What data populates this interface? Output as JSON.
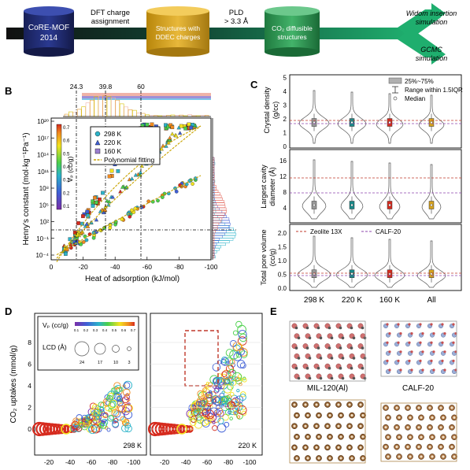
{
  "colors": {
    "workflow_arrow": "#1a7a55",
    "workflow_arrow_dark": "#111111",
    "cylinder_navy": "#1f2a6b",
    "cylinder_gold": "#d6a21e",
    "cylinder_green": "#2f9a52",
    "dashed_red": "#c0392b",
    "dashed_purple": "#8e44ad",
    "violin_edge": "#555555"
  },
  "panelA": {
    "db": "CoRE-MOF\n2014",
    "db_line1": "CoRE-MOF",
    "db_line2": "2014",
    "step1_line1": "DFT charge",
    "step1_line2": "assignment",
    "node2_line1": "Structures with",
    "node2_line2": "DDEC charges",
    "step2_line1": "PLD",
    "step2_line2": "> 3.3 Å",
    "node3_line1": "CO₂ diffusible",
    "node3_line2": "structures",
    "out1_line1": "Widom insertion",
    "out1_line2": "simulation",
    "out2_line1": "GCMC",
    "out2_line2": "simulation"
  },
  "panelB": {
    "letter": "B",
    "ylabel": "Henry's constant (mol·kg⁻¹Pa⁻¹)",
    "xlabel": "Heat of adsorption (kJ/mol)",
    "xticks": [
      "0",
      "-20",
      "-40",
      "-60",
      "-80",
      "-100"
    ],
    "yticks": [
      "10⁻⁴",
      "10⁻¹",
      "10²",
      "10⁵",
      "10⁸",
      "10¹¹",
      "10¹⁴",
      "10¹⁷",
      "10²⁰"
    ],
    "top_markers": [
      "24.3",
      "39.8",
      "60"
    ],
    "legend": [
      "298 K",
      "220 K",
      "160 K",
      "Polynomial fitting"
    ],
    "colorbar_label": "Vₚ (cc/g)",
    "colorbar_ticks": [
      "0.7",
      "0.6",
      "0.5",
      "0.4",
      "0.3",
      "0.2",
      "0.1"
    ]
  },
  "panelC": {
    "letter": "C",
    "ylabel_top": "Crystal density",
    "ylabel_top_units": "(g/cc)",
    "ylabel_mid_line1": "Largest cavity",
    "ylabel_mid_line2": "diameter (Å)",
    "ylabel_bot_line1": "Total pore volume",
    "ylabel_bot_line2": "(cc/g)",
    "yticks_top": [
      "0",
      "1",
      "2",
      "3",
      "4",
      "5"
    ],
    "yticks_mid": [
      "4",
      "8",
      "12",
      "16"
    ],
    "yticks_bot": [
      "0.0",
      "0.5",
      "1.0",
      "1.5",
      "2.0"
    ],
    "categories": [
      "298 K",
      "220 K",
      "160 K",
      "All"
    ],
    "legend_box": "25%~75%",
    "legend_range": "Range within 1.5IQR",
    "legend_median": "Median",
    "legend_zeolite": "Zeolite 13X",
    "legend_calf": "CALF-20"
  },
  "panelD": {
    "letter": "D",
    "ylabel": "CO₂ uptakes (mmol/g)",
    "xticks": [
      "-20",
      "-40",
      "-60",
      "-80",
      "-100"
    ],
    "yticks": [
      "0",
      "2",
      "4",
      "6",
      "8"
    ],
    "colorbar_label": "Vₚ (cc/g)",
    "colorbar_ticks": [
      "0.1",
      "0.2",
      "0.3",
      "0.4",
      "0.5",
      "0.6",
      "0.7"
    ],
    "lcd_label": "LCD (Å)",
    "lcd_ticks": [
      "24",
      "17",
      "10",
      "3"
    ],
    "label_left": "298 K",
    "label_right": "220 K"
  },
  "panelE": {
    "letter": "E",
    "label1": "MIL-120(Al)",
    "label2": "CALF-20"
  }
}
